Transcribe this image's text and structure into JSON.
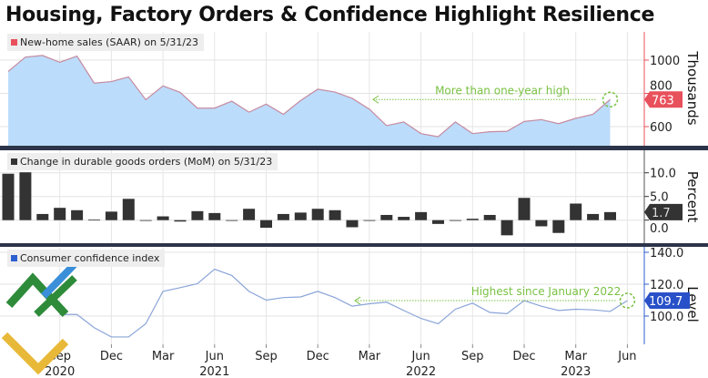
{
  "title": "Housing, Factory Orders & Confidence Highlight Resilience",
  "chart_data": [
    {
      "type": "area",
      "legend": "New-home sales (SAAR) on 5/31/23",
      "ylabel": "Thousands",
      "yticks": [
        600,
        800,
        1000
      ],
      "ylim": [
        480,
        1150
      ],
      "color": "#e8505b",
      "fill": "#bcdcfb",
      "x_start": "2020-06",
      "x_end": "2023-05",
      "values": [
        932,
        1018,
        1028,
        987,
        1024,
        862,
        871,
        899,
        762,
        845,
        806,
        711,
        711,
        753,
        687,
        735,
        674,
        757,
        825,
        808,
        770,
        705,
        606,
        628,
        558,
        539,
        628,
        558,
        569,
        572,
        631,
        642,
        618,
        650,
        674,
        763
      ],
      "last_value_label": "763",
      "annotation": "More than one-year high"
    },
    {
      "type": "bar",
      "legend": "Change in durable goods orders (MoM) on 5/31/23",
      "ylabel": "Percent",
      "yticks": [
        "0.0",
        "5.0",
        "10.0"
      ],
      "color": "#333333",
      "x_start": "2020-06",
      "x_end": "2023-05",
      "values": [
        9.8,
        10.1,
        1.3,
        2.6,
        2.1,
        0.1,
        1.8,
        4.5,
        -0.1,
        0.8,
        -0.3,
        1.9,
        1.5,
        -0.1,
        2.4,
        -1.6,
        1.3,
        1.6,
        2.4,
        2.1,
        -1.5,
        0.0,
        1.1,
        0.7,
        1.7,
        -0.8,
        0.0,
        0.3,
        1.1,
        -3.2,
        4.7,
        -1.3,
        -2.7,
        3.5,
        1.3,
        1.7
      ],
      "last_value_label": "1.7"
    },
    {
      "type": "line",
      "legend": "Consumer confidence index",
      "ylabel": "Level",
      "yticks": [
        "100.0",
        "120.0",
        "140.0"
      ],
      "color": "#2c5fd0",
      "x_start": "2020-09",
      "x_end": "2023-06",
      "values": [
        101,
        101,
        92.7,
        86.9,
        86.9,
        95.2,
        115.5,
        117.8,
        120.3,
        129.4,
        125.5,
        115.5,
        110,
        111.6,
        112,
        115.5,
        111.6,
        106.2,
        107.7,
        108.7,
        103.5,
        98.5,
        95.2,
        104.3,
        108.1,
        102.3,
        101.5,
        109.7,
        106.2,
        103.5,
        104.3,
        103.9,
        102.9,
        109.7
      ],
      "last_value_label": "109.7",
      "annotation": "Highest since January 2022"
    }
  ],
  "x_ticks": [
    {
      "m": "Sep",
      "y": "2020"
    },
    {
      "m": "Dec",
      "y": ""
    },
    {
      "m": "Mar",
      "y": ""
    },
    {
      "m": "Jun",
      "y": "2021"
    },
    {
      "m": "Sep",
      "y": ""
    },
    {
      "m": "Dec",
      "y": ""
    },
    {
      "m": "Mar",
      "y": ""
    },
    {
      "m": "Jun",
      "y": "2022"
    },
    {
      "m": "Sep",
      "y": ""
    },
    {
      "m": "Dec",
      "y": ""
    },
    {
      "m": "Mar",
      "y": "2023"
    },
    {
      "m": "Jun",
      "y": ""
    }
  ],
  "annotation_color": "#7ac143"
}
